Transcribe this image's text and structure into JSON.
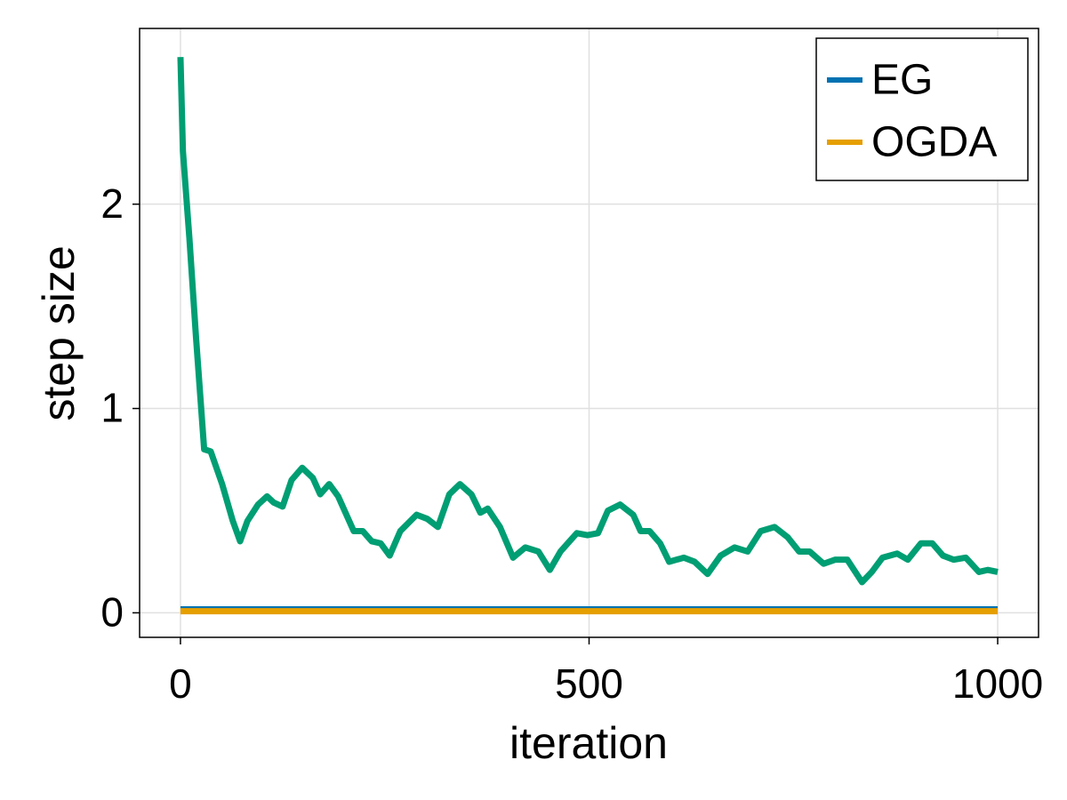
{
  "chart_data": {
    "type": "line",
    "xlabel": "iteration",
    "ylabel": "step size",
    "xlim": [
      -50,
      1050
    ],
    "ylim": [
      -0.12,
      2.86
    ],
    "xticks": [
      0,
      500,
      1000
    ],
    "yticks": [
      0,
      1,
      2
    ],
    "grid": true,
    "legend": "top-right",
    "series": [
      {
        "name": "EG",
        "color": "#0072b2",
        "x": [
          0,
          1000
        ],
        "values": [
          0.026,
          0.026
        ]
      },
      {
        "name": "OGDA",
        "color": "#e69f00",
        "x": [
          0,
          1000
        ],
        "values": [
          0.008,
          0.008
        ]
      },
      {
        "color": "#009e73",
        "x": [
          0,
          3,
          11,
          19,
          29,
          37,
          51,
          64,
          73,
          82,
          95,
          106,
          114,
          125,
          136,
          149,
          162,
          171,
          182,
          193,
          212,
          223,
          234,
          245,
          256,
          269,
          289,
          302,
          315,
          329,
          342,
          356,
          367,
          376,
          391,
          407,
          422,
          438,
          452,
          465,
          485,
          498,
          511,
          523,
          538,
          554,
          563,
          574,
          587,
          598,
          616,
          629,
          645,
          661,
          678,
          694,
          710,
          727,
          743,
          757,
          770,
          787,
          801,
          816,
          834,
          846,
          859,
          877,
          890,
          906,
          920,
          933,
          946,
          961,
          977,
          988,
          1000
        ],
        "values": [
          2.72,
          2.26,
          1.83,
          1.35,
          0.8,
          0.79,
          0.63,
          0.45,
          0.35,
          0.45,
          0.53,
          0.57,
          0.54,
          0.52,
          0.65,
          0.71,
          0.66,
          0.58,
          0.63,
          0.57,
          0.4,
          0.4,
          0.35,
          0.34,
          0.28,
          0.4,
          0.48,
          0.46,
          0.42,
          0.58,
          0.63,
          0.58,
          0.49,
          0.51,
          0.42,
          0.27,
          0.32,
          0.3,
          0.21,
          0.3,
          0.39,
          0.38,
          0.39,
          0.5,
          0.53,
          0.48,
          0.4,
          0.4,
          0.34,
          0.25,
          0.27,
          0.25,
          0.19,
          0.28,
          0.32,
          0.3,
          0.4,
          0.42,
          0.37,
          0.3,
          0.3,
          0.24,
          0.26,
          0.26,
          0.15,
          0.2,
          0.27,
          0.29,
          0.26,
          0.34,
          0.34,
          0.28,
          0.26,
          0.27,
          0.2,
          0.21,
          0.2
        ]
      }
    ]
  }
}
